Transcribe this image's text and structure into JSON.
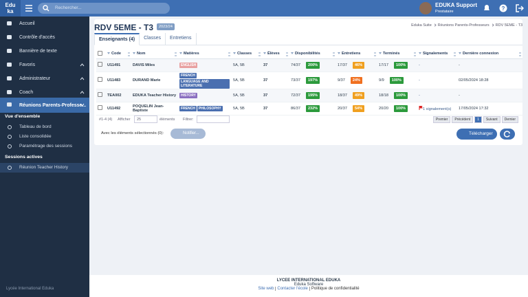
{
  "header": {
    "logo_top": "Edu",
    "logo_bottom": "ka",
    "search_placeholder": "Rechercher...",
    "user_name": "EDUKA Support",
    "user_role": "Prestataire"
  },
  "sidebar": {
    "items": [
      "Accueil",
      "Contrôle d'accès",
      "Bannière de texte",
      "Favoris",
      "Administrateur",
      "Coach",
      "Réunions Parents-Professe..."
    ],
    "section1": "Vue d'ensemble",
    "section1_items": [
      "Tableau de bord",
      "Liste consolidée",
      "Paramétrage des sessions"
    ],
    "section2": "Sessions actives",
    "section2_items": [
      "Réunion Teacher History"
    ],
    "footer": "Lycée International Eduka"
  },
  "page": {
    "title": "RDV 5EME - T3",
    "badge": "2023/24",
    "breadcrumb": [
      "Eduka Suite",
      "Réunions Parents-Professeurs",
      "RDV 5EME - T3"
    ],
    "tabs": [
      "Enseignants (4)",
      "Classes",
      "Entretiens"
    ]
  },
  "table": {
    "columns": [
      "Code",
      "Nom",
      "Matières",
      "Classes",
      "Élèves",
      "Disponibilités",
      "Entretiens",
      "Terminés",
      "Signalements",
      "Dernière connexion"
    ],
    "rows": [
      {
        "code": "U11491",
        "name": "DAVIS Miles",
        "subjects": [
          {
            "text": "ENGLISH",
            "color": "#e8a0a0"
          }
        ],
        "classes": "5A, 5B",
        "students": "37",
        "availability": {
          "count": "74/37",
          "pct": "200%",
          "color": "#2c9a3c"
        },
        "interviews": {
          "count": "17/37",
          "pct": "46%",
          "color": "#f0a020"
        },
        "completed": {
          "count": "17/17",
          "pct": "100%",
          "color": "#2c9a3c"
        },
        "reports": "-",
        "last_login": "-"
      },
      {
        "code": "U11483",
        "name": "DURAND Marie",
        "subjects": [
          {
            "text": "FRENCH",
            "color": "#4a6fb0"
          },
          {
            "text": "LANGUAGE AND LITERATURE",
            "color": "#4a6fb0"
          }
        ],
        "classes": "5A, 5B",
        "students": "37",
        "availability": {
          "count": "73/37",
          "pct": "197%",
          "color": "#2c9a3c"
        },
        "interviews": {
          "count": "9/37",
          "pct": "24%",
          "color": "#f07020"
        },
        "completed": {
          "count": "9/9",
          "pct": "100%",
          "color": "#2c9a3c"
        },
        "reports": "-",
        "last_login": "02/05/2024 18:28"
      },
      {
        "code": "TEA002",
        "name": "EDUKA Teacher History",
        "subjects": [
          {
            "text": "HISTORY",
            "color": "#8a6fc0"
          }
        ],
        "classes": "5A, 5B",
        "students": "37",
        "availability": {
          "count": "72/37",
          "pct": "195%",
          "color": "#2c9a3c"
        },
        "interviews": {
          "count": "18/37",
          "pct": "49%",
          "color": "#f0a020"
        },
        "completed": {
          "count": "18/18",
          "pct": "100%",
          "color": "#2c9a3c"
        },
        "reports": "-",
        "last_login": "-"
      },
      {
        "code": "U11492",
        "name": "POQUELIN Jean-Baptiste",
        "subjects": [
          {
            "text": "FRENCH",
            "color": "#4a6fb0"
          },
          {
            "text": "PHILOSOPHY",
            "color": "#4a6fb0"
          }
        ],
        "classes": "5A, 5B",
        "students": "37",
        "availability": {
          "count": "86/37",
          "pct": "232%",
          "color": "#2c9a3c"
        },
        "interviews": {
          "count": "20/37",
          "pct": "54%",
          "color": "#f0a020"
        },
        "completed": {
          "count": "20/20",
          "pct": "100%",
          "color": "#2c9a3c"
        },
        "reports": "1 signalement(s)",
        "last_login": "17/05/2024 17:32"
      }
    ]
  },
  "pagination": {
    "summary": "#1-4 (4)",
    "show": "Afficher",
    "page_size": "25",
    "elements": "éléments",
    "filter": "Filtrer:",
    "buttons": [
      "Premier",
      "Précédent",
      "1",
      "Suivant",
      "Dernier"
    ]
  },
  "actions": {
    "selected": "Avec les éléments sélectionnés (0):",
    "notify": "Notifier...",
    "download": "Télécharger"
  },
  "footer": {
    "school": "LYCEE INTERNATIONAL EDUKA",
    "software": "Eduka Software",
    "links": [
      "Site web",
      "Contacter l'école",
      "Politique de confidentialité"
    ]
  }
}
